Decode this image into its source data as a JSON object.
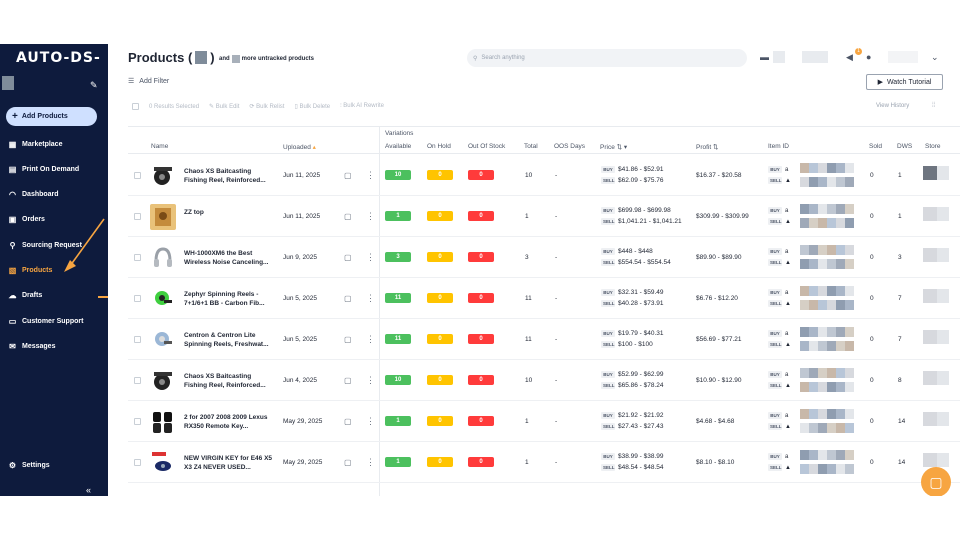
{
  "app": {
    "logo": "AUTO-DS-"
  },
  "sidebar": {
    "add_products": "Add Products",
    "items": [
      {
        "label": "Marketplace",
        "icon": "store-icon"
      },
      {
        "label": "Print On Demand",
        "icon": "printer-icon"
      },
      {
        "label": "Dashboard",
        "icon": "gauge-icon"
      },
      {
        "label": "Orders",
        "icon": "orders-icon"
      },
      {
        "label": "Sourcing Request",
        "icon": "sourcing-icon"
      },
      {
        "label": "Products",
        "icon": "box-icon",
        "active": true
      },
      {
        "label": "Drafts",
        "icon": "cloud-icon"
      },
      {
        "label": "Customer Support",
        "icon": "support-icon"
      },
      {
        "label": "Messages",
        "icon": "mail-icon"
      }
    ],
    "settings": "Settings",
    "collapse": "«"
  },
  "header": {
    "title_prefix": "Products (",
    "title_suffix": ")",
    "untracked_prefix": "and",
    "untracked_suffix": "more untracked products",
    "search_placeholder": "Search anything",
    "notification_count": "1"
  },
  "toolbar": {
    "add_filter": "Add Filter",
    "watch_tutorial": "Watch Tutorial",
    "results_selected": "0 Results Selected",
    "bulk_edit": "Bulk Edit",
    "bulk_relist": "Bulk Relist",
    "bulk_delete": "Bulk Delete",
    "bulk_ai_rewrite": "Bulk AI Rewrite",
    "view_history": "View History"
  },
  "table": {
    "variations_label": "Variations",
    "columns": {
      "name": "Name",
      "uploaded": "Uploaded",
      "available": "Available",
      "on_hold": "On Hold",
      "out_of_stock": "Out Of Stock",
      "total": "Total",
      "oos_days": "OOS Days",
      "price": "Price",
      "profit": "Profit",
      "item_id": "Item ID",
      "sold": "Sold",
      "dws": "DWS",
      "store": "Store"
    },
    "buy_label": "BUY",
    "sell_label": "SELL",
    "rows": [
      {
        "name": "Chaos XS Baitcasting Fishing Reel, Reinforced...",
        "uploaded": "Jun 11, 2025",
        "available": "10",
        "on_hold": "0",
        "out_of_stock": "0",
        "total": "10",
        "oos_days": "-",
        "buy": "$41.86 - $52.91",
        "sell": "$62.09 - $75.76",
        "profit": "$16.37 - $20.58",
        "sold": "0",
        "dws": "1",
        "thumb": "reel"
      },
      {
        "name": "ZZ top",
        "uploaded": "Jun 11, 2025",
        "available": "1",
        "on_hold": "0",
        "out_of_stock": "0",
        "total": "1",
        "oos_days": "-",
        "buy": "$699.98 - $699.98",
        "sell": "$1,041.21 - $1,041.21",
        "profit": "$309.99 - $309.99",
        "sold": "0",
        "dws": "1",
        "thumb": "poster"
      },
      {
        "name": "WH-1000XM6 the Best Wireless Noise Canceling...",
        "uploaded": "Jun 9, 2025",
        "available": "3",
        "on_hold": "0",
        "out_of_stock": "0",
        "total": "3",
        "oos_days": "-",
        "buy": "$448 - $448",
        "sell": "$554.54 - $554.54",
        "profit": "$89.90 - $89.90",
        "sold": "0",
        "dws": "3",
        "thumb": "headphones"
      },
      {
        "name": "Zephyr Spinning Reels - 7+1/6+1 BB - Carbon Fib...",
        "uploaded": "Jun 5, 2025",
        "available": "11",
        "on_hold": "0",
        "out_of_stock": "0",
        "total": "11",
        "oos_days": "-",
        "buy": "$32.31 - $59.49",
        "sell": "$40.28 - $73.91",
        "profit": "$6.76 - $12.20",
        "sold": "0",
        "dws": "7",
        "thumb": "spinreel"
      },
      {
        "name": "Centron & Centron Lite Spinning Reels, Freshwat...",
        "uploaded": "Jun 5, 2025",
        "available": "11",
        "on_hold": "0",
        "out_of_stock": "0",
        "total": "11",
        "oos_days": "-",
        "buy": "$19.79 - $40.31",
        "sell": "$100 - $100",
        "profit": "$56.69 - $77.21",
        "sold": "0",
        "dws": "7",
        "thumb": "spinreel2"
      },
      {
        "name": "Chaos XS Baitcasting Fishing Reel, Reinforced...",
        "uploaded": "Jun 4, 2025",
        "available": "10",
        "on_hold": "0",
        "out_of_stock": "0",
        "total": "10",
        "oos_days": "-",
        "buy": "$52.99 - $62.99",
        "sell": "$65.86 - $78.24",
        "profit": "$10.90 - $12.90",
        "sold": "0",
        "dws": "8",
        "thumb": "reel"
      },
      {
        "name": "2 for 2007 2008 2009 Lexus RX350 Remote Key...",
        "uploaded": "May 29, 2025",
        "available": "1",
        "on_hold": "0",
        "out_of_stock": "0",
        "total": "1",
        "oos_days": "-",
        "buy": "$21.92 - $21.92",
        "sell": "$27.43 - $27.43",
        "profit": "$4.68 - $4.68",
        "sold": "0",
        "dws": "14",
        "thumb": "keys"
      },
      {
        "name": "NEW VIRGIN KEY for E46 X5 X3 Z4 NEVER USED...",
        "uploaded": "May 29, 2025",
        "available": "1",
        "on_hold": "0",
        "out_of_stock": "0",
        "total": "1",
        "oos_days": "-",
        "buy": "$38.99 - $38.99",
        "sell": "$48.54 - $48.54",
        "profit": "$8.10 - $8.10",
        "sold": "0",
        "dws": "14",
        "thumb": "key"
      }
    ]
  },
  "colors": {
    "sidebar_bg": "#0e1b3d",
    "accent": "#f7a541",
    "available": "#4cc05e",
    "on_hold": "#ffc400",
    "out_of_stock": "#ff3b3b"
  }
}
